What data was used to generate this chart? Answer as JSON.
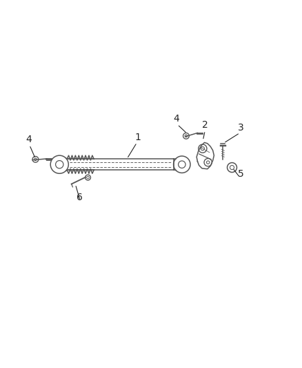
{
  "bg_color": "#ffffff",
  "line_color": "#555555",
  "dark_color": "#333333",
  "figsize": [
    4.38,
    5.33
  ],
  "dpi": 100,
  "label_fontsize": 10,
  "label_color": "#222222"
}
